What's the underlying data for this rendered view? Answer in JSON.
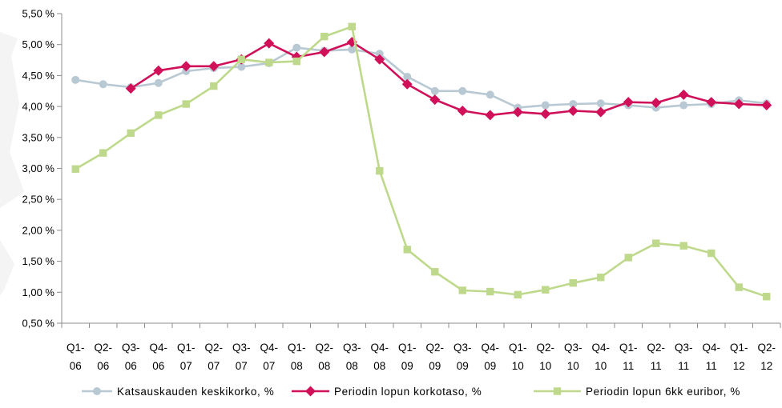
{
  "chart_data": {
    "type": "line",
    "title": "",
    "xlabel": "",
    "ylabel": "",
    "ylim": [
      0.5,
      5.5
    ],
    "yticks": [
      "0,50 %",
      "1,00 %",
      "1,50 %",
      "2,00 %",
      "2,50 %",
      "3,00 %",
      "3,50 %",
      "4,00 %",
      "4,50 %",
      "5,00 %",
      "5,50 %"
    ],
    "categories": [
      [
        "Q1-",
        "06"
      ],
      [
        "Q2-",
        "06"
      ],
      [
        "Q3-",
        "06"
      ],
      [
        "Q4-",
        "06"
      ],
      [
        "Q1-",
        "07"
      ],
      [
        "Q2-",
        "07"
      ],
      [
        "Q3-",
        "07"
      ],
      [
        "Q4-",
        "07"
      ],
      [
        "Q1-",
        "08"
      ],
      [
        "Q2-",
        "08"
      ],
      [
        "Q3-",
        "08"
      ],
      [
        "Q4-",
        "08"
      ],
      [
        "Q1-",
        "09"
      ],
      [
        "Q2-",
        "09"
      ],
      [
        "Q3-",
        "09"
      ],
      [
        "Q4-",
        "09"
      ],
      [
        "Q1-",
        "10"
      ],
      [
        "Q2-",
        "10"
      ],
      [
        "Q3-",
        "10"
      ],
      [
        "Q4-",
        "10"
      ],
      [
        "Q1-",
        "11"
      ],
      [
        "Q2-",
        "11"
      ],
      [
        "Q3-",
        "11"
      ],
      [
        "Q4-",
        "11"
      ],
      [
        "Q1-",
        "12"
      ],
      [
        "Q2-",
        "12"
      ]
    ],
    "legend_position": "bottom",
    "grid": false,
    "series": [
      {
        "name": "Katsauskauden keskikorko, %",
        "color": "#b9c9d3",
        "marker": "circle",
        "values": [
          4.43,
          4.36,
          4.31,
          4.38,
          4.57,
          4.62,
          4.64,
          4.7,
          4.95,
          4.9,
          4.92,
          4.85,
          4.48,
          4.25,
          4.25,
          4.19,
          3.98,
          4.02,
          4.04,
          4.05,
          4.02,
          3.98,
          4.02,
          4.04,
          4.1,
          4.05
        ]
      },
      {
        "name": "Periodin lopun korkotaso, %",
        "color": "#d0115a",
        "marker": "diamond",
        "values": [
          null,
          null,
          4.29,
          4.58,
          4.65,
          4.65,
          4.76,
          5.02,
          4.8,
          4.88,
          5.04,
          4.76,
          4.36,
          4.11,
          3.93,
          3.86,
          3.91,
          3.88,
          3.93,
          3.91,
          4.07,
          4.06,
          4.19,
          4.07,
          4.04,
          4.02
        ]
      },
      {
        "name": "Periodin lopun 6kk euribor, %",
        "color": "#bfd98c",
        "marker": "square",
        "values": [
          2.99,
          3.25,
          3.57,
          3.86,
          4.04,
          4.33,
          4.76,
          4.71,
          4.73,
          5.13,
          5.29,
          2.96,
          1.69,
          1.33,
          1.03,
          1.01,
          0.96,
          1.04,
          1.15,
          1.24,
          1.56,
          1.79,
          1.75,
          1.63,
          1.08,
          0.93
        ]
      }
    ]
  }
}
